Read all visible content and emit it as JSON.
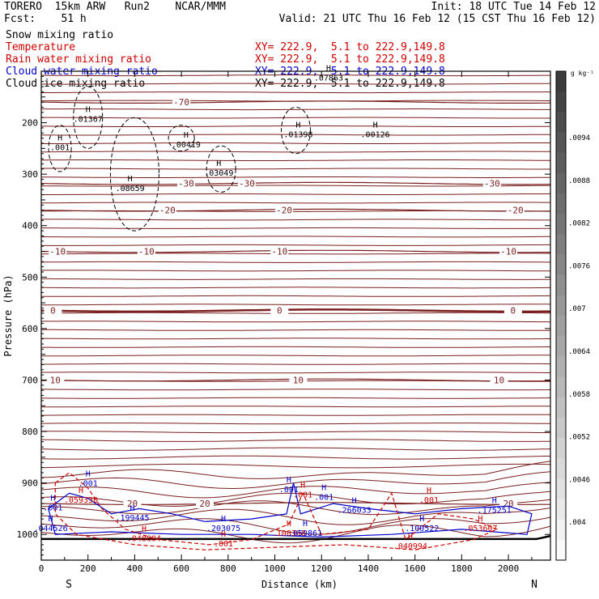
{
  "header": {
    "left_line1": "TORERO  15km ARW   Run2    NCAR/MMM",
    "left_line2": "Fcst:    51 h",
    "right_line1": "Init: 18 UTC Tue 14 Feb 12",
    "right_line2": "Valid: 21 UTC Thu 16 Feb 12 (15 CST Thu 16 Feb 12)"
  },
  "fields": [
    {
      "name": "Snow mixing ratio",
      "xy": "",
      "color": "#000000"
    },
    {
      "name": "Temperature",
      "xy": "XY= 222.9,  5.1 to 222.9,149.8",
      "color": "#cc0000"
    },
    {
      "name": "Rain water mixing ratio",
      "xy": "XY= 222.9,  5.1 to 222.9,149.8",
      "color": "#cc0000"
    },
    {
      "name": "Cloud water mixing ratio",
      "xy": "XY= 222.9,  5.1 to 222.9,149.8",
      "color": "#0000cc"
    },
    {
      "name": "Cloud ice mixing ratio",
      "xy": "XY= 222.9,  5.1 to 222.9,149.8",
      "color": "#000000"
    }
  ],
  "chart_data": {
    "type": "line",
    "xlabel": "Distance (km)",
    "ylabel": "Pressure (hPa)",
    "xlim": [
      0,
      2180
    ],
    "ylim": [
      100,
      1050
    ],
    "x_ticks": [
      0,
      200,
      400,
      600,
      800,
      1000,
      1200,
      1400,
      1600,
      1800,
      2000
    ],
    "y_ticks": [
      200,
      300,
      400,
      500,
      600,
      700,
      800,
      900,
      1000
    ],
    "x_end_labels": {
      "left": "S",
      "right": "N"
    },
    "colorbar": {
      "unit": "g kg⁻¹",
      "labels": [
        ".0094",
        ".0088",
        ".0082",
        ".0076",
        ".007",
        ".0064",
        ".0058",
        ".0052",
        ".0046",
        ".004"
      ]
    },
    "temperature_isotherms": [
      {
        "label": "-70",
        "p": 160,
        "labels_at": [
          600
        ]
      },
      {
        "label": "-30",
        "p": 318,
        "labels_at": [
          620,
          880,
          1930
        ]
      },
      {
        "label": "-20",
        "p": 370,
        "labels_at": [
          540,
          1040,
          2030
        ]
      },
      {
        "label": "-10",
        "p": 450,
        "labels_at": [
          70,
          450,
          1020,
          2000
        ]
      },
      {
        "label": "0",
        "p": 565,
        "labels_at": [
          50,
          1020,
          2020
        ]
      },
      {
        "label": "10",
        "p": 700,
        "labels_at": [
          60,
          1100,
          1960
        ]
      },
      {
        "label": "20",
        "p": 940,
        "labels_at": [
          390,
          700,
          2000
        ]
      }
    ],
    "snow_maxima": [
      {
        "label": ".01367",
        "x": 200,
        "p": 195
      },
      {
        "label": ".001",
        "x": 80,
        "p": 250
      },
      {
        "label": ".08659",
        "x": 380,
        "p": 330
      },
      {
        "label": ".00419",
        "x": 620,
        "p": 245
      },
      {
        "label": ".03049",
        "x": 760,
        "p": 300
      },
      {
        "label": ".01398",
        "x": 1100,
        "p": 225
      },
      {
        "label": ".00126",
        "x": 1430,
        "p": 225
      },
      {
        "label": ".07863",
        "x": 1230,
        "p": 115
      }
    ],
    "rain_maxima": [
      {
        "label": ".059330",
        "x": 170,
        "p": 935
      },
      {
        "label": ".048604",
        "x": 440,
        "p": 1010
      },
      {
        "label": ".001",
        "x": 780,
        "p": 1020
      },
      {
        "label": ".100368",
        "x": 1060,
        "p": 1000
      },
      {
        "label": ".001",
        "x": 1120,
        "p": 925
      },
      {
        "label": ".001",
        "x": 1660,
        "p": 935
      },
      {
        "label": ".040994",
        "x": 1580,
        "p": 1025
      },
      {
        "label": ".053607",
        "x": 1880,
        "p": 990
      }
    ],
    "cloud_water_maxima": [
      {
        "label": ".001",
        "x": 200,
        "p": 903
      },
      {
        "label": ".001",
        "x": 50,
        "p": 950
      },
      {
        "label": ".044526",
        "x": 40,
        "p": 990
      },
      {
        "label": ".199445",
        "x": 390,
        "p": 970
      },
      {
        "label": ".203075",
        "x": 780,
        "p": 990
      },
      {
        "label": ".001",
        "x": 1060,
        "p": 915
      },
      {
        "label": ".059861",
        "x": 1130,
        "p": 1000
      },
      {
        "label": ".001",
        "x": 1210,
        "p": 930
      },
      {
        "label": ".266033",
        "x": 1340,
        "p": 955
      },
      {
        "label": ".100522",
        "x": 1630,
        "p": 990
      },
      {
        "label": ".175251",
        "x": 1940,
        "p": 955
      }
    ]
  }
}
